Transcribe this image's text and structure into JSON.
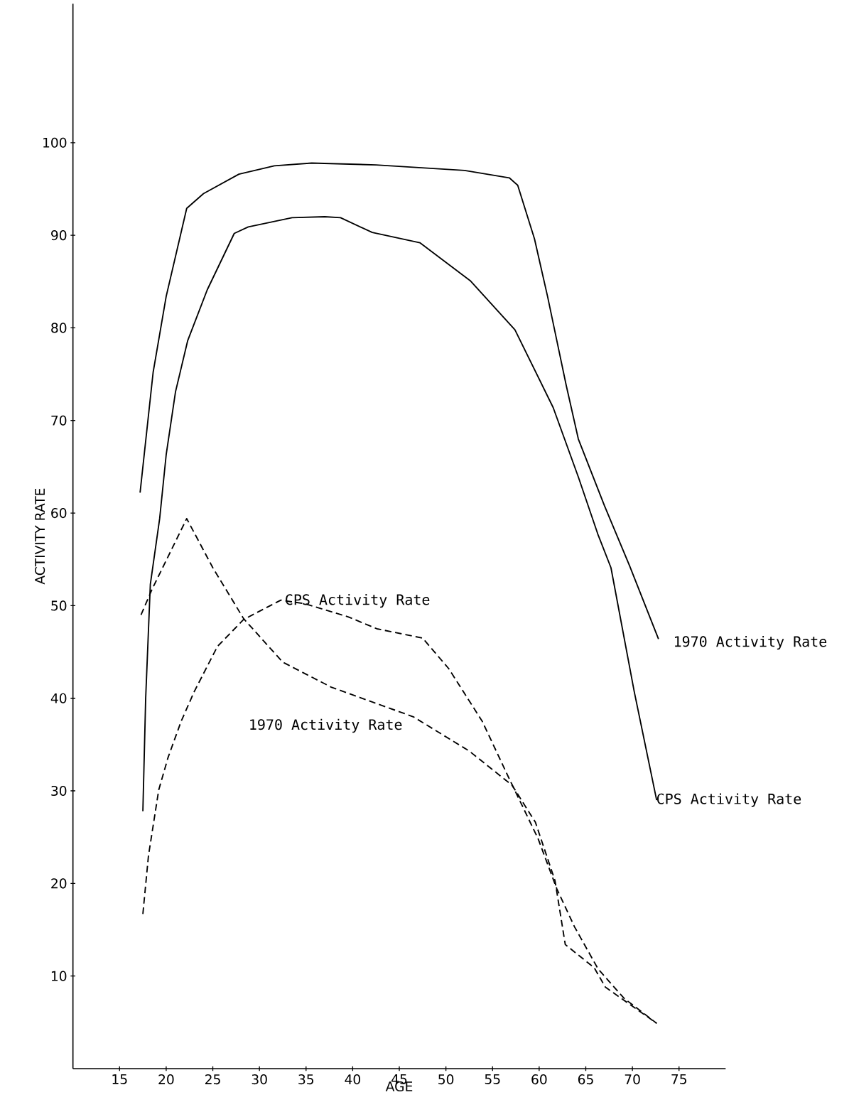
{
  "chart_data": {
    "type": "line",
    "xlabel": "AGE",
    "ylabel": "ACTIVITY RATE",
    "xlim": [
      10,
      80
    ],
    "ylim": [
      0,
      115
    ],
    "xticks": [
      15,
      20,
      25,
      30,
      35,
      40,
      45,
      50,
      55,
      60,
      65,
      70,
      75
    ],
    "yticks": [
      10,
      20,
      30,
      40,
      50,
      60,
      70,
      80,
      90,
      100
    ],
    "grid": false,
    "marker": "none",
    "series": [
      {
        "name": "1970 Activity Rate",
        "color": "#000000",
        "line_style": "solid",
        "x": [
          17.2,
          18.6,
          20,
          22.2,
          24,
          27.8,
          31.6,
          35.6,
          42.5,
          52,
          56.8,
          57.7,
          59.5,
          60.9,
          62.9,
          64.2,
          67,
          69.7,
          72.8
        ],
        "values": [
          62.2,
          75.2,
          83.4,
          92.9,
          94.5,
          96.6,
          97.5,
          97.8,
          97.6,
          97.0,
          96.2,
          95.4,
          89.6,
          83.4,
          73.8,
          68,
          60.8,
          54.3,
          46.4
        ]
      },
      {
        "name": "CPS Activity Rate",
        "color": "#000000",
        "line_style": "solid",
        "x": [
          17.5,
          17.8,
          18.3,
          19.3,
          20,
          21,
          22.3,
          24.4,
          27.3,
          28.8,
          33.5,
          37,
          38.7,
          42.1,
          47.2,
          52.6,
          57.4,
          61.5,
          64.2,
          66.3,
          67.7,
          70.2,
          72.6
        ],
        "values": [
          27.8,
          40,
          52.3,
          59.4,
          66.3,
          73.1,
          78.6,
          84.1,
          90.2,
          90.9,
          91.9,
          92.0,
          91.9,
          90.3,
          89.2,
          85.1,
          79.8,
          71.4,
          63.9,
          57.7,
          54.1,
          40.7,
          29.0
        ]
      },
      {
        "name": "1970 Activity Rate",
        "color": "#000000",
        "line_style": "dashed",
        "x": [
          17.3,
          18.5,
          22.2,
          25,
          28.3,
          32.5,
          37.7,
          46.5,
          52.5,
          57.1,
          59.6,
          61.7,
          62.8,
          65.9,
          67.1,
          72.6
        ],
        "values": [
          49.0,
          51.8,
          59.4,
          54.1,
          48.6,
          43.9,
          41.2,
          38,
          34.3,
          30.6,
          26.6,
          20.3,
          13.4,
          10.9,
          8.8,
          4.9
        ]
      },
      {
        "name": "CPS Activity Rate",
        "color": "#000000",
        "line_style": "dashed",
        "x": [
          17.5,
          18.1,
          19.2,
          20.2,
          21.6,
          23,
          25.5,
          28.3,
          32.3,
          34.9,
          39.5,
          42.6,
          47.5,
          50.3,
          53.9,
          56.7,
          59.9,
          61.9,
          63.8,
          66.3,
          69.1,
          72.6
        ],
        "values": [
          16.7,
          23,
          30.1,
          33.6,
          37.5,
          40.7,
          45.6,
          48.5,
          50.6,
          50.2,
          48.8,
          47.5,
          46.5,
          43.2,
          37.5,
          31.5,
          24.8,
          19.4,
          15.3,
          10.8,
          7.6,
          4.9
        ]
      }
    ]
  }
}
